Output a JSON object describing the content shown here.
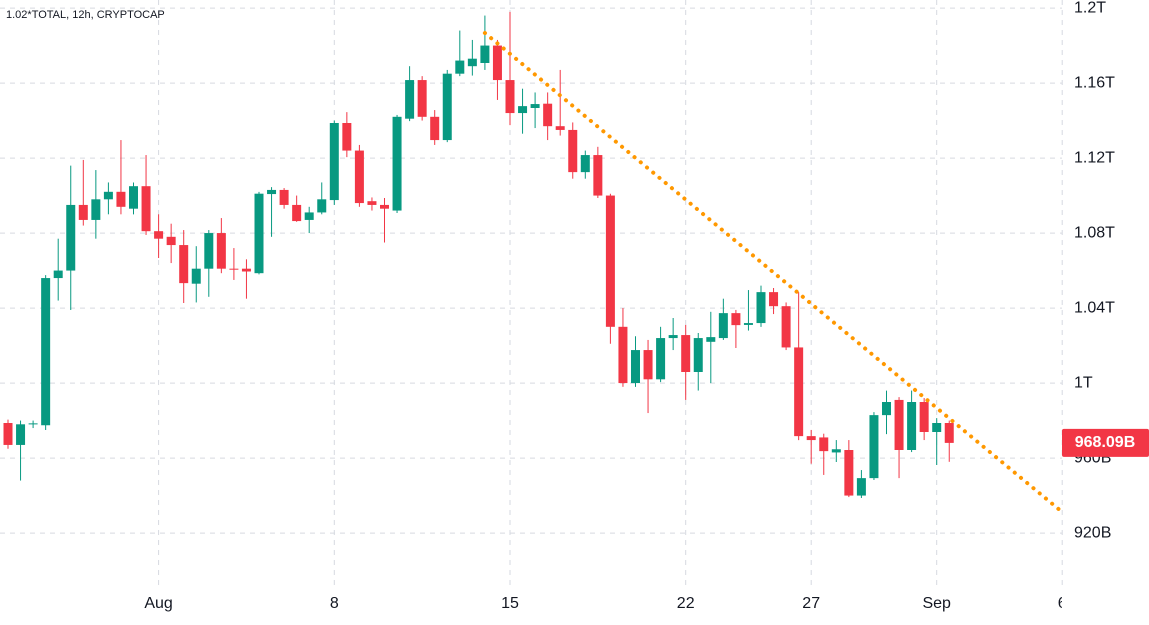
{
  "chart_data": {
    "type": "candlestick",
    "title": "1.02*TOTAL, 12h, CRYPTOCAP",
    "categories": [
      null,
      null,
      null,
      null,
      null,
      null,
      null,
      null,
      null,
      null,
      null,
      null,
      "Aug",
      null,
      null,
      null,
      null,
      null,
      null,
      null,
      null,
      null,
      null,
      null,
      null,
      null,
      "8",
      null,
      null,
      null,
      null,
      null,
      null,
      null,
      null,
      null,
      null,
      null,
      null,
      null,
      "15",
      null,
      null,
      null,
      null,
      null,
      null,
      null,
      null,
      null,
      null,
      null,
      null,
      null,
      "22",
      null,
      null,
      null,
      null,
      null,
      null,
      null,
      null,
      null,
      "27",
      null,
      null,
      null,
      null,
      null,
      null,
      null,
      null,
      null,
      "Sep",
      null,
      null,
      null,
      null,
      null,
      null,
      null,
      null,
      null,
      "6"
    ],
    "open": [
      978.7,
      967,
      978,
      977.5,
      1056,
      1060,
      1095,
      1087,
      1098,
      1102,
      1093,
      1105,
      1081,
      1078,
      1073.6,
      1053,
      1061,
      1080,
      1061,
      1061,
      1058.6,
      1100.8,
      1103,
      1095,
      1087,
      1091,
      1097.6,
      1138.7,
      1124,
      1097,
      1095,
      1092,
      1141,
      1161.6,
      1142,
      1129.6,
      1165,
      1169,
      1170.7,
      1180,
      1161.6,
      1144,
      1146.7,
      1149,
      1137,
      1135,
      1112.5,
      1121.6,
      1100,
      1030,
      1000,
      1017.6,
      1002,
      1024,
      1025.6,
      1005.9,
      1022,
      1024,
      1037.3,
      1031,
      1032,
      1048.5,
      1041,
      1019,
      971.7,
      971,
      963,
      964.3,
      940,
      949.3,
      982.9,
      991,
      964.3,
      989.9,
      973.9,
      978.7,
      null,
      null,
      null,
      null,
      null,
      null,
      null,
      null,
      null
    ],
    "high": [
      980.5,
      980,
      980,
      1057.6,
      1077,
      1116,
      1119,
      1113.6,
      1107,
      1129.6,
      1107,
      1121.6,
      1090,
      1085,
      1081.6,
      1073,
      1081.6,
      1088,
      1072,
      1066,
      1102,
      1104.5,
      1104,
      1100,
      1094,
      1107,
      1140,
      1144.5,
      1127,
      1099,
      1098.7,
      1143,
      1169,
      1163.7,
      1145.6,
      1167,
      1188,
      1183,
      1196,
      1183,
      1198,
      1157,
      1155,
      1155,
      1167,
      1139,
      1124,
      1126,
      1101,
      1040,
      1025,
      1023,
      1030,
      1034.7,
      1031,
      1026.7,
      1038,
      1045,
      1039,
      1049.6,
      1052,
      1050.7,
      1043,
      1048.5,
      975,
      973,
      969.6,
      969.6,
      953.6,
      984.5,
      996,
      992.5,
      996,
      992,
      981.3,
      980,
      null,
      null,
      null,
      null,
      null,
      null,
      null,
      null,
      null
    ],
    "low": [
      965,
      948,
      976,
      975,
      1044,
      1039,
      1084,
      1077,
      1090,
      1090,
      1090,
      1079,
      1066.7,
      1064,
      1042.7,
      1043,
      1046,
      1058.6,
      1055,
      1045,
      1058,
      1078,
      1093,
      1086,
      1080,
      1090,
      1095,
      1120.5,
      1094,
      1092,
      1075,
      1090.7,
      1139.7,
      1140,
      1127,
      1128.5,
      1163.7,
      1164,
      1167,
      1151,
      1137.6,
      1133,
      1136,
      1129.6,
      1132,
      1109,
      1109,
      1098.7,
      1021,
      998,
      998,
      984,
      1000.5,
      1017.6,
      991,
      996,
      1000,
      1023,
      1018.7,
      1028,
      1030,
      1036.8,
      1017.6,
      969.6,
      957,
      951,
      957.9,
      939.2,
      938.7,
      948.3,
      972.8,
      949.3,
      963.2,
      969.6,
      956.3,
      958,
      null,
      null,
      null,
      null,
      null,
      null,
      null,
      null,
      null
    ],
    "close": [
      967,
      978,
      978.5,
      1056,
      1060,
      1095,
      1087,
      1098,
      1102,
      1094,
      1105,
      1081,
      1077,
      1073.6,
      1053.3,
      1061,
      1080,
      1061,
      1060.5,
      1059.5,
      1101,
      1103,
      1095,
      1086.4,
      1091,
      1098,
      1138.7,
      1124,
      1096,
      1095,
      1093,
      1142,
      1161.6,
      1142,
      1129.6,
      1165,
      1172,
      1173,
      1180,
      1161.6,
      1144,
      1147.7,
      1148.8,
      1137,
      1135,
      1112.5,
      1121.6,
      1100,
      1030,
      1000,
      1017.6,
      1002,
      1024,
      1025.6,
      1005.9,
      1024,
      1024.5,
      1037.3,
      1030.9,
      1032,
      1048.5,
      1041,
      1019,
      971.7,
      969.6,
      963.7,
      964.7,
      940,
      949.3,
      982.9,
      989.9,
      964.3,
      989.9,
      973.9,
      978.7,
      968.09,
      null,
      null,
      null,
      null,
      null,
      null,
      null,
      null,
      null
    ],
    "up_color": "#089981",
    "down_color": "#f23645",
    "ylim": [
      892.3,
      1204.3
    ],
    "yticks": [
      {
        "value": 920,
        "label": "920B"
      },
      {
        "value": 960,
        "label": "960B"
      },
      {
        "value": 1000,
        "label": "1T"
      },
      {
        "value": 1040,
        "label": "1.04T"
      },
      {
        "value": 1080,
        "label": "1.08T"
      },
      {
        "value": 1120,
        "label": "1.12T"
      },
      {
        "value": 1160,
        "label": "1.16T"
      },
      {
        "value": 1200,
        "label": "1.2T"
      }
    ],
    "grid": true,
    "last_price": 968.09,
    "last_price_label": "968.09B",
    "trendline": {
      "color": "#ff9800",
      "start": [
        38,
        1186.7
      ],
      "end": [
        84,
        931.2
      ]
    }
  }
}
